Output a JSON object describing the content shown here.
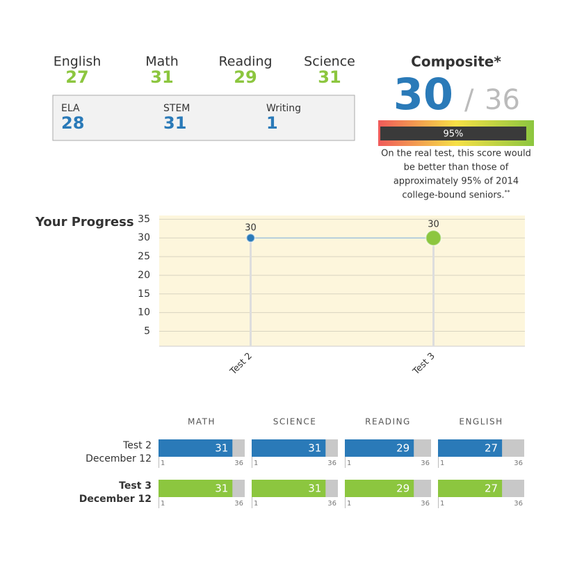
{
  "subjects": [
    {
      "name": "English",
      "score": 27
    },
    {
      "name": "Math",
      "score": 31
    },
    {
      "name": "Reading",
      "score": 29
    },
    {
      "name": "Science",
      "score": 31
    }
  ],
  "subscores": [
    {
      "name": "ELA",
      "score": 28
    },
    {
      "name": "STEM",
      "score": 31
    },
    {
      "name": "Writing",
      "score": 1
    }
  ],
  "composite": {
    "title": "Composite*",
    "score": 30,
    "separator": "/",
    "max": 36,
    "percentile": 95,
    "percentile_label": "95%",
    "description": [
      "On the real test, this score would",
      "be better than those of",
      "approximately 95% of 2014",
      "college-bound seniors."
    ],
    "footnote_mark": "**"
  },
  "chart_data": {
    "type": "line",
    "title": "Your Progress",
    "categories": [
      "Test 2",
      "Test 3"
    ],
    "values": [
      30,
      30
    ],
    "point_colors": [
      "#2a7ab8",
      "#8cc63f"
    ],
    "color": "#7fb3e0",
    "ylim": [
      1,
      36
    ],
    "yticks": [
      5,
      10,
      15,
      20,
      25,
      30,
      35
    ],
    "grid": true
  },
  "score_table": {
    "headers": [
      "MATH",
      "SCIENCE",
      "READING",
      "ENGLISH"
    ],
    "min": 1,
    "max": 36,
    "rows": [
      {
        "test": "Test 2",
        "date": "December 12",
        "color": "#2a7ab8",
        "scores": [
          31,
          31,
          29,
          27
        ]
      },
      {
        "test": "Test 3",
        "date": "December 12",
        "color": "#8cc63f",
        "scores": [
          31,
          31,
          29,
          27
        ]
      }
    ]
  }
}
